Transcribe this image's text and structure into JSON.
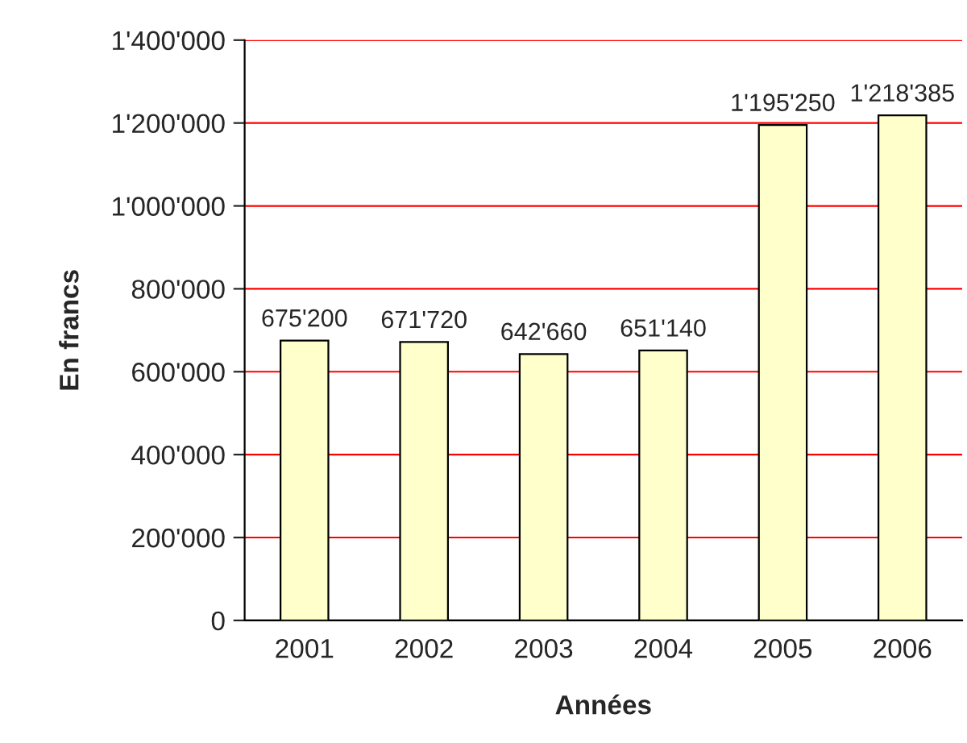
{
  "chart_data": {
    "type": "bar",
    "xlabel": "Années",
    "ylabel": "En francs",
    "categories": [
      "2001",
      "2002",
      "2003",
      "2004",
      "2005",
      "2006"
    ],
    "values": [
      675200,
      671720,
      642660,
      651140,
      1195250,
      1218385
    ],
    "value_labels": [
      "675'200",
      "671'720",
      "642'660",
      "651'140",
      "1'195'250",
      "1'218'385"
    ],
    "color": "#ffffcc",
    "ylim": [
      0,
      1400000
    ],
    "yticks": [
      {
        "value": 0,
        "label": "0"
      },
      {
        "value": 200000,
        "label": "200'000"
      },
      {
        "value": 400000,
        "label": "400'000"
      },
      {
        "value": 600000,
        "label": "600'000"
      },
      {
        "value": 800000,
        "label": "800'000"
      },
      {
        "value": 1000000,
        "label": "1'000'000"
      },
      {
        "value": 1200000,
        "label": "1'200'000"
      },
      {
        "value": 1400000,
        "label": "1'400'000"
      }
    ],
    "grid": "y",
    "legend": false
  }
}
